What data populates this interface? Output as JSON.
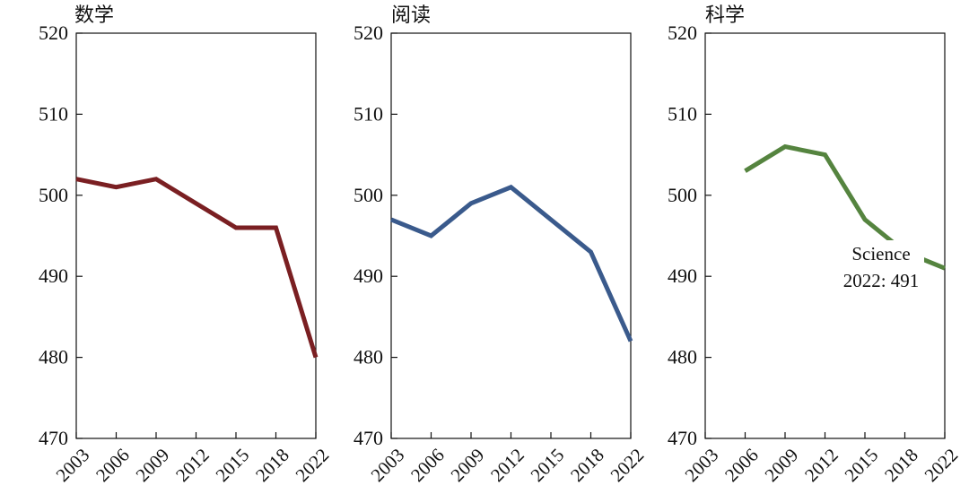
{
  "figure": {
    "panel_titles": [
      "数学",
      "阅读",
      "科学"
    ]
  },
  "chart_data": [
    {
      "type": "line",
      "title": "数学",
      "xlabel": "",
      "ylabel": "",
      "categories": [
        "2003",
        "2006",
        "2009",
        "2012",
        "2015",
        "2018",
        "2022"
      ],
      "ylim": [
        470,
        520
      ],
      "yticks": [
        470,
        480,
        490,
        500,
        510,
        520
      ],
      "grid": false,
      "series": [
        {
          "color": "#7a1f22",
          "values": [
            502,
            501,
            502,
            499,
            496,
            496,
            480
          ]
        }
      ],
      "annotations": []
    },
    {
      "type": "line",
      "title": "阅读",
      "xlabel": "",
      "ylabel": "",
      "categories": [
        "2003",
        "2006",
        "2009",
        "2012",
        "2015",
        "2018",
        "2022"
      ],
      "ylim": [
        470,
        520
      ],
      "yticks": [
        470,
        480,
        490,
        500,
        510,
        520
      ],
      "grid": false,
      "series": [
        {
          "color": "#3a5a8c",
          "values": [
            497,
            495,
            499,
            501,
            497,
            493,
            482
          ]
        }
      ],
      "annotations": []
    },
    {
      "type": "line",
      "title": "科学",
      "xlabel": "",
      "ylabel": "",
      "categories": [
        "2003",
        "2006",
        "2009",
        "2012",
        "2015",
        "2018",
        "2022"
      ],
      "ylim": [
        470,
        520
      ],
      "yticks": [
        470,
        480,
        490,
        500,
        510,
        520
      ],
      "grid": false,
      "series": [
        {
          "color": "#55843f",
          "values": [
            null,
            503,
            506,
            505,
            497,
            493,
            491
          ]
        }
      ],
      "annotations": [
        {
          "lines": [
            "Science",
            "2022: 491"
          ]
        }
      ]
    }
  ]
}
